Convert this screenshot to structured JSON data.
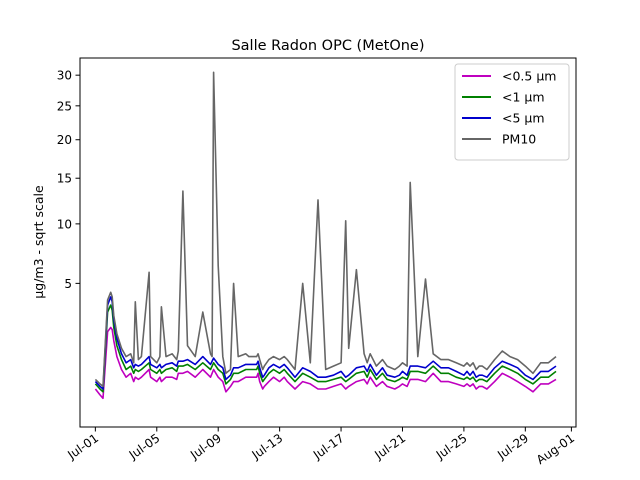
{
  "chart_data": {
    "type": "line",
    "title": "Salle Radon OPC (MetOne)",
    "xlabel": "",
    "ylabel": "µg/m3 - sqrt scale",
    "yscale": "sqrt",
    "ylim": [
      0,
      33
    ],
    "xlim": [
      -1.0,
      31.3
    ],
    "x_ticks": [
      {
        "day": 0,
        "label": "Jul-01"
      },
      {
        "day": 4,
        "label": "Jul-05"
      },
      {
        "day": 8,
        "label": "Jul-09"
      },
      {
        "day": 12,
        "label": "Jul-13"
      },
      {
        "day": 16,
        "label": "Jul-17"
      },
      {
        "day": 20,
        "label": "Jul-21"
      },
      {
        "day": 24,
        "label": "Jul-25"
      },
      {
        "day": 28,
        "label": "Jul-29"
      },
      {
        "day": 31,
        "label": "Aug-01"
      }
    ],
    "y_ticks": [
      5,
      10,
      15,
      20,
      25,
      30
    ],
    "grid": false,
    "legend_position": "top-right",
    "x": [
      0.0,
      0.3,
      0.5,
      0.8,
      1.0,
      1.1,
      1.2,
      1.4,
      1.7,
      2.0,
      2.3,
      2.5,
      2.6,
      2.8,
      3.0,
      3.5,
      3.6,
      4.0,
      4.2,
      4.3,
      4.6,
      5.0,
      5.3,
      5.4,
      5.7,
      6.0,
      6.5,
      7.0,
      7.5,
      7.6,
      7.7,
      8.0,
      8.3,
      8.5,
      8.8,
      9.0,
      9.3,
      9.8,
      10.0,
      10.5,
      10.6,
      10.7,
      10.9,
      11.0,
      11.3,
      11.6,
      12.0,
      12.3,
      12.5,
      13.0,
      13.5,
      14.0,
      14.5,
      15.0,
      15.5,
      16.0,
      16.3,
      16.5,
      17.0,
      17.5,
      17.7,
      17.9,
      18.3,
      18.7,
      19.0,
      19.5,
      19.8,
      20.0,
      20.3,
      20.5,
      21.0,
      21.5,
      22.0,
      22.5,
      23.0,
      23.5,
      24.0,
      24.2,
      24.4,
      24.6,
      24.8,
      25.0,
      25.2,
      25.5,
      26.0,
      26.5,
      27.0,
      27.5,
      28.0,
      28.5,
      29.0,
      29.5,
      30.0
    ],
    "series": [
      {
        "name": "<0.5 µm",
        "color": "#bf00bf",
        "values": [
          0.35,
          0.25,
          0.2,
          2.2,
          2.4,
          2.3,
          1.8,
          1.2,
          0.8,
          0.6,
          0.7,
          0.5,
          0.6,
          0.55,
          0.6,
          0.8,
          0.6,
          0.5,
          0.6,
          0.5,
          0.6,
          0.6,
          0.55,
          0.7,
          0.7,
          0.75,
          0.6,
          0.8,
          0.6,
          0.7,
          0.8,
          0.6,
          0.5,
          0.3,
          0.4,
          0.5,
          0.5,
          0.6,
          0.6,
          0.6,
          0.7,
          0.5,
          0.35,
          0.4,
          0.5,
          0.6,
          0.5,
          0.6,
          0.5,
          0.35,
          0.5,
          0.45,
          0.35,
          0.35,
          0.4,
          0.45,
          0.35,
          0.4,
          0.5,
          0.55,
          0.45,
          0.6,
          0.4,
          0.5,
          0.4,
          0.35,
          0.4,
          0.45,
          0.4,
          0.55,
          0.55,
          0.5,
          0.7,
          0.5,
          0.5,
          0.45,
          0.4,
          0.45,
          0.4,
          0.45,
          0.35,
          0.4,
          0.4,
          0.35,
          0.5,
          0.7,
          0.6,
          0.5,
          0.4,
          0.3,
          0.45,
          0.45,
          0.55
        ]
      },
      {
        "name": "<1 µm",
        "color": "#008000",
        "values": [
          0.45,
          0.35,
          0.3,
          3.2,
          3.6,
          3.3,
          2.4,
          1.6,
          1.1,
          0.8,
          0.9,
          0.7,
          0.8,
          0.75,
          0.8,
          1.0,
          0.8,
          0.7,
          0.8,
          0.7,
          0.8,
          0.85,
          0.75,
          0.9,
          0.9,
          0.95,
          0.8,
          1.0,
          0.8,
          0.9,
          1.0,
          0.8,
          0.7,
          0.45,
          0.55,
          0.7,
          0.7,
          0.8,
          0.8,
          0.8,
          0.9,
          0.7,
          0.5,
          0.55,
          0.7,
          0.8,
          0.7,
          0.8,
          0.7,
          0.5,
          0.7,
          0.6,
          0.5,
          0.5,
          0.55,
          0.6,
          0.5,
          0.55,
          0.7,
          0.75,
          0.6,
          0.8,
          0.55,
          0.7,
          0.55,
          0.5,
          0.55,
          0.6,
          0.55,
          0.75,
          0.75,
          0.7,
          0.9,
          0.7,
          0.7,
          0.6,
          0.55,
          0.6,
          0.55,
          0.6,
          0.5,
          0.55,
          0.55,
          0.5,
          0.7,
          0.9,
          0.8,
          0.7,
          0.55,
          0.45,
          0.6,
          0.6,
          0.75
        ]
      },
      {
        "name": "<5 µm",
        "color": "#0000cc",
        "values": [
          0.5,
          0.4,
          0.35,
          3.6,
          4.1,
          3.8,
          2.8,
          1.9,
          1.3,
          1.0,
          1.1,
          0.85,
          0.95,
          0.9,
          0.95,
          1.2,
          0.95,
          0.85,
          0.95,
          0.85,
          0.95,
          1.0,
          0.9,
          1.05,
          1.05,
          1.1,
          0.95,
          1.2,
          0.95,
          1.05,
          1.15,
          0.95,
          0.85,
          0.55,
          0.65,
          0.85,
          0.85,
          0.95,
          0.95,
          0.95,
          1.05,
          0.85,
          0.6,
          0.65,
          0.85,
          0.95,
          0.85,
          0.95,
          0.85,
          0.6,
          0.85,
          0.75,
          0.6,
          0.6,
          0.65,
          0.75,
          0.6,
          0.65,
          0.85,
          0.9,
          0.75,
          0.95,
          0.65,
          0.85,
          0.65,
          0.6,
          0.65,
          0.75,
          0.65,
          0.9,
          0.9,
          0.85,
          1.05,
          0.85,
          0.85,
          0.75,
          0.65,
          0.75,
          0.65,
          0.75,
          0.6,
          0.65,
          0.65,
          0.6,
          0.85,
          1.05,
          0.95,
          0.85,
          0.65,
          0.55,
          0.75,
          0.75,
          0.9
        ]
      },
      {
        "name": "PM10",
        "color": "#666666",
        "values": [
          0.55,
          0.45,
          0.4,
          3.9,
          4.4,
          4.1,
          3.0,
          2.1,
          1.5,
          1.2,
          1.3,
          1.0,
          3.8,
          1.1,
          1.2,
          5.8,
          1.2,
          1.0,
          1.2,
          3.5,
          1.2,
          1.3,
          1.1,
          1.4,
          13.5,
          1.6,
          1.2,
          3.2,
          1.3,
          1.2,
          30.5,
          6.3,
          1.2,
          0.7,
          0.8,
          5.0,
          1.2,
          1.3,
          1.2,
          1.2,
          1.3,
          1.1,
          0.8,
          0.9,
          1.1,
          1.2,
          1.1,
          1.2,
          1.1,
          0.8,
          5.0,
          1.0,
          12.5,
          0.8,
          0.9,
          1.0,
          10.3,
          1.5,
          6.0,
          1.3,
          1.0,
          1.3,
          0.9,
          1.1,
          0.9,
          0.8,
          0.9,
          1.0,
          0.9,
          14.5,
          1.2,
          5.3,
          1.3,
          1.1,
          1.1,
          1.0,
          0.9,
          1.0,
          0.9,
          1.0,
          0.8,
          0.9,
          0.9,
          0.8,
          1.1,
          1.4,
          1.2,
          1.1,
          0.9,
          0.7,
          1.0,
          1.0,
          1.2
        ]
      }
    ]
  }
}
